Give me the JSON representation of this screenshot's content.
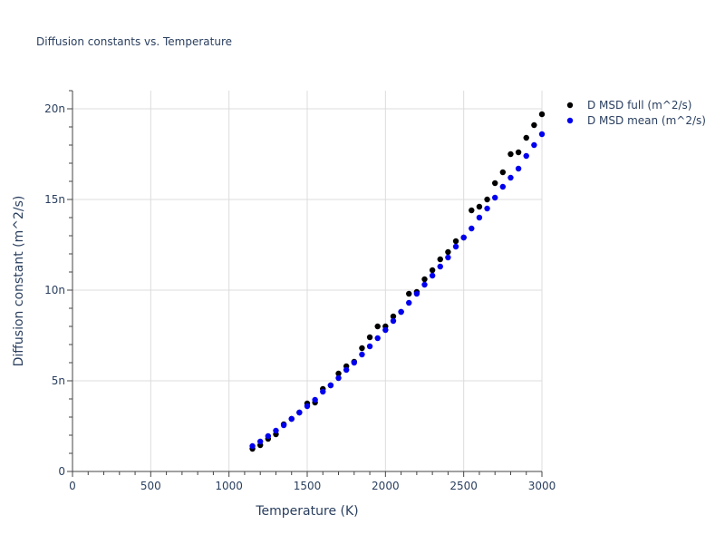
{
  "chart_data": {
    "type": "scatter",
    "title": "Diffusion constants vs. Temperature",
    "xlabel": "Temperature (K)",
    "ylabel": "Diffusion constant (m^2/s)",
    "xlim": [
      0,
      3000
    ],
    "ylim": [
      0,
      2.1e-08
    ],
    "x_ticks": [
      0,
      500,
      1000,
      1500,
      2000,
      2500,
      3000
    ],
    "x_tick_labels": [
      "0",
      "500",
      "1000",
      "1500",
      "2000",
      "2500",
      "3000"
    ],
    "y_ticks": [
      0,
      5e-09,
      1e-08,
      1.5e-08,
      2e-08
    ],
    "y_tick_labels": [
      "0",
      "5n",
      "10n",
      "15n",
      "20n"
    ],
    "grid": true,
    "legend_position": "top-right",
    "series": [
      {
        "name": "D MSD full (m^2/s)",
        "color": "#000000",
        "x": [
          1150,
          1200,
          1250,
          1300,
          1350,
          1400,
          1450,
          1500,
          1550,
          1600,
          1650,
          1700,
          1750,
          1800,
          1850,
          1900,
          1950,
          2000,
          2050,
          2100,
          2150,
          2200,
          2250,
          2300,
          2350,
          2400,
          2450,
          2500,
          2550,
          2600,
          2650,
          2700,
          2750,
          2800,
          2850,
          2900,
          2950,
          3000
        ],
        "y": [
          1.25e-09,
          1.45e-09,
          1.8e-09,
          2.05e-09,
          2.6e-09,
          2.9e-09,
          3.25e-09,
          3.75e-09,
          3.8e-09,
          4.55e-09,
          4.75e-09,
          5.4e-09,
          5.8e-09,
          6.05e-09,
          6.8e-09,
          7.4e-09,
          8e-09,
          8e-09,
          8.55e-09,
          8.8e-09,
          9.8e-09,
          9.9e-09,
          1.06e-08,
          1.11e-08,
          1.17e-08,
          1.21e-08,
          1.27e-08,
          1.29e-08,
          1.44e-08,
          1.46e-08,
          1.5e-08,
          1.59e-08,
          1.65e-08,
          1.75e-08,
          1.76e-08,
          1.84e-08,
          1.91e-08,
          1.97e-08
        ]
      },
      {
        "name": "D MSD mean (m^2/s)",
        "color": "#0000ee",
        "x": [
          1150,
          1200,
          1250,
          1300,
          1350,
          1400,
          1450,
          1500,
          1550,
          1600,
          1650,
          1700,
          1750,
          1800,
          1850,
          1900,
          1950,
          2000,
          2050,
          2100,
          2150,
          2200,
          2250,
          2300,
          2350,
          2400,
          2450,
          2500,
          2550,
          2600,
          2650,
          2700,
          2750,
          2800,
          2850,
          2900,
          2950,
          3000
        ],
        "y": [
          1.4e-09,
          1.65e-09,
          1.95e-09,
          2.25e-09,
          2.55e-09,
          2.9e-09,
          3.25e-09,
          3.6e-09,
          3.95e-09,
          4.4e-09,
          4.75e-09,
          5.15e-09,
          5.6e-09,
          6e-09,
          6.45e-09,
          6.9e-09,
          7.35e-09,
          7.8e-09,
          8.3e-09,
          8.8e-09,
          9.3e-09,
          9.8e-09,
          1.03e-08,
          1.08e-08,
          1.13e-08,
          1.18e-08,
          1.24e-08,
          1.29e-08,
          1.34e-08,
          1.4e-08,
          1.45e-08,
          1.51e-08,
          1.57e-08,
          1.62e-08,
          1.67e-08,
          1.74e-08,
          1.8e-08,
          1.86e-08
        ]
      }
    ]
  }
}
